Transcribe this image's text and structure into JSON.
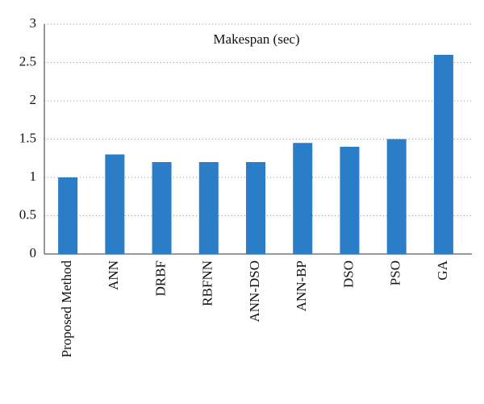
{
  "chart_data": {
    "type": "bar",
    "title": "Makespan (sec)",
    "categories": [
      "Proposed Method",
      "ANN",
      "DRBF",
      "RBFNN",
      "ANN-DSO",
      "ANN-BP",
      "DSO",
      "PSO",
      "GA"
    ],
    "values": [
      1.0,
      1.3,
      1.2,
      1.2,
      1.2,
      1.45,
      1.4,
      1.5,
      2.6
    ],
    "color": "#2a7dc6",
    "ylim": [
      0,
      3
    ],
    "yticks": [
      0,
      0.5,
      1,
      1.5,
      2,
      2.5,
      3
    ],
    "grid": true
  }
}
